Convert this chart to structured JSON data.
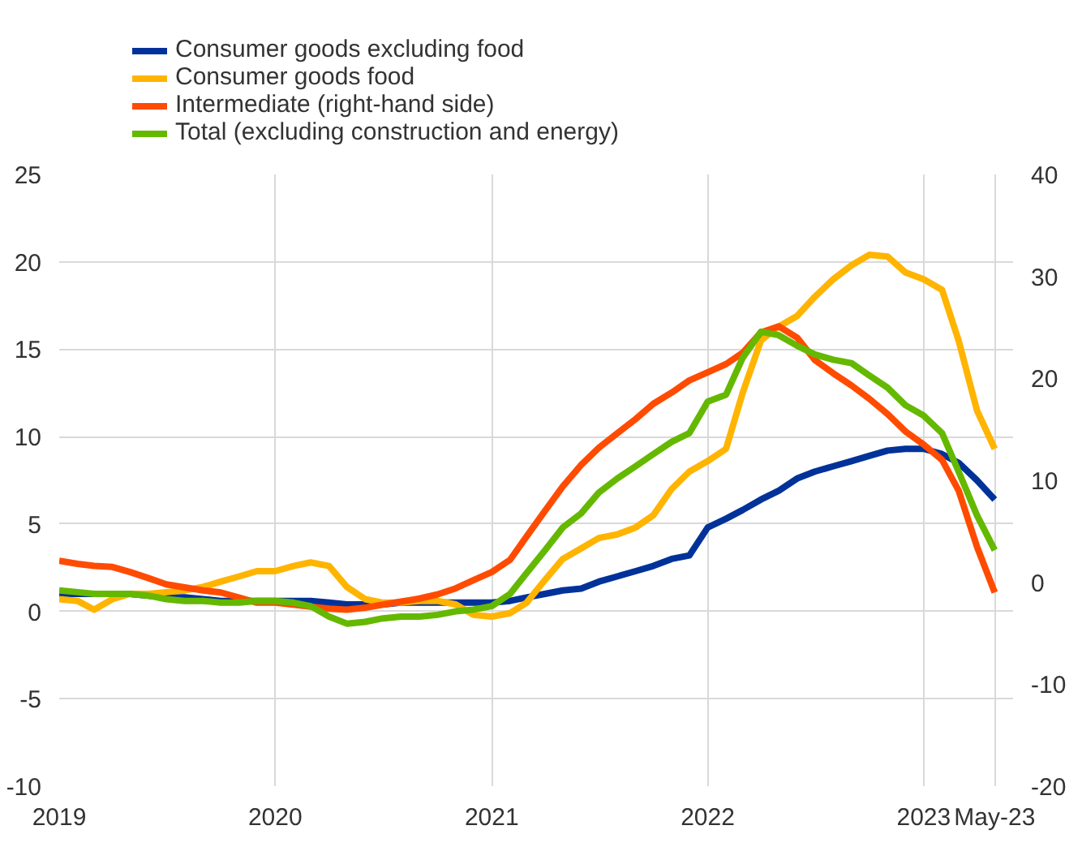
{
  "chart_data": {
    "type": "line",
    "x": [
      "2019-01",
      "2019-02",
      "2019-03",
      "2019-04",
      "2019-05",
      "2019-06",
      "2019-07",
      "2019-08",
      "2019-09",
      "2019-10",
      "2019-11",
      "2019-12",
      "2020-01",
      "2020-02",
      "2020-03",
      "2020-04",
      "2020-05",
      "2020-06",
      "2020-07",
      "2020-08",
      "2020-09",
      "2020-10",
      "2020-11",
      "2020-12",
      "2021-01",
      "2021-02",
      "2021-03",
      "2021-04",
      "2021-05",
      "2021-06",
      "2021-07",
      "2021-08",
      "2021-09",
      "2021-10",
      "2021-11",
      "2021-12",
      "2022-01",
      "2022-02",
      "2022-03",
      "2022-04",
      "2022-05",
      "2022-06",
      "2022-07",
      "2022-08",
      "2022-09",
      "2022-10",
      "2022-11",
      "2022-12",
      "2023-01",
      "2023-02",
      "2023-03",
      "2023-04",
      "2023-05"
    ],
    "series": [
      {
        "name": "Consumer goods excluding food",
        "color": "#003299",
        "values": [
          1.0,
          1.0,
          1.0,
          1.0,
          1.0,
          0.9,
          0.8,
          0.8,
          0.7,
          0.6,
          0.6,
          0.6,
          0.6,
          0.6,
          0.6,
          0.5,
          0.4,
          0.4,
          0.4,
          0.5,
          0.5,
          0.5,
          0.5,
          0.5,
          0.5,
          0.6,
          0.8,
          1.0,
          1.2,
          1.3,
          1.7,
          2.0,
          2.3,
          2.6,
          3.0,
          3.2,
          4.8,
          5.3,
          5.8,
          6.4,
          6.9,
          7.6,
          8.0,
          8.3,
          8.6,
          8.9,
          9.2,
          9.3,
          9.3,
          9.0,
          8.5,
          7.5,
          6.4
        ]
      },
      {
        "name": "Consumer goods food",
        "color": "#ffb400",
        "values": [
          0.7,
          0.6,
          0.1,
          0.7,
          1.0,
          1.0,
          1.1,
          1.2,
          1.4,
          1.7,
          2.0,
          2.3,
          2.3,
          2.6,
          2.8,
          2.6,
          1.4,
          0.7,
          0.5,
          0.5,
          0.6,
          0.6,
          0.4,
          -0.2,
          -0.3,
          -0.1,
          0.5,
          1.8,
          3.0,
          3.6,
          4.2,
          4.4,
          4.8,
          5.5,
          7.0,
          8.0,
          8.6,
          9.3,
          12.5,
          15.5,
          16.3,
          16.9,
          18.0,
          19.0,
          19.8,
          20.4,
          20.3,
          19.4,
          19.0,
          18.4,
          15.5,
          11.5,
          9.3
        ]
      },
      {
        "name": "Intermediate (right-hand side)",
        "color": "#ff4b00",
        "axis": "y2",
        "values": [
          2.1,
          1.8,
          1.6,
          1.5,
          1.0,
          0.4,
          -0.2,
          -0.5,
          -0.8,
          -1.0,
          -1.5,
          -2.0,
          -2.0,
          -2.2,
          -2.4,
          -2.6,
          -2.7,
          -2.5,
          -2.2,
          -1.9,
          -1.6,
          -1.2,
          -0.6,
          0.2,
          1.0,
          2.2,
          4.5,
          7.0,
          9.4,
          11.5,
          13.2,
          14.6,
          16.0,
          17.5,
          18.6,
          19.8,
          20.6,
          21.4,
          22.5,
          24.5,
          25.1,
          24.0,
          21.8,
          20.5,
          19.3,
          18.0,
          16.5,
          14.8,
          13.5,
          12.0,
          9.0,
          3.5,
          -1.0
        ]
      },
      {
        "name": "Total (excluding construction and energy)",
        "color": "#65b800",
        "values": [
          1.2,
          1.1,
          1.0,
          1.0,
          1.0,
          0.9,
          0.7,
          0.6,
          0.6,
          0.5,
          0.5,
          0.6,
          0.6,
          0.5,
          0.3,
          -0.3,
          -0.7,
          -0.6,
          -0.4,
          -0.3,
          -0.3,
          -0.2,
          0.0,
          0.1,
          0.3,
          1.0,
          2.2,
          3.5,
          4.8,
          5.6,
          6.8,
          7.6,
          8.3,
          9.0,
          9.7,
          10.2,
          12.0,
          12.4,
          14.5,
          16.0,
          15.8,
          15.2,
          14.7,
          14.4,
          14.2,
          13.5,
          12.8,
          11.8,
          11.2,
          10.2,
          8.0,
          5.5,
          3.5
        ]
      }
    ],
    "xlim": [
      "2019-01",
      "2023-06"
    ],
    "xticks": [
      {
        "value": "2019-01",
        "label": "2019"
      },
      {
        "value": "2020-01",
        "label": "2020"
      },
      {
        "value": "2021-01",
        "label": "2021"
      },
      {
        "value": "2022-01",
        "label": "2022"
      },
      {
        "value": "2023-01",
        "label": "2023"
      },
      {
        "value": "2023-05",
        "label": "May-23"
      }
    ],
    "ylim": [
      -10,
      25
    ],
    "yticks": [
      -10,
      -5,
      0,
      5,
      10,
      15,
      20,
      25
    ],
    "y2lim": [
      -20,
      40
    ],
    "y2ticks": [
      -20,
      -10,
      0,
      10,
      20,
      30,
      40
    ],
    "grid": true,
    "legend": "top left",
    "line_style": "solid"
  }
}
